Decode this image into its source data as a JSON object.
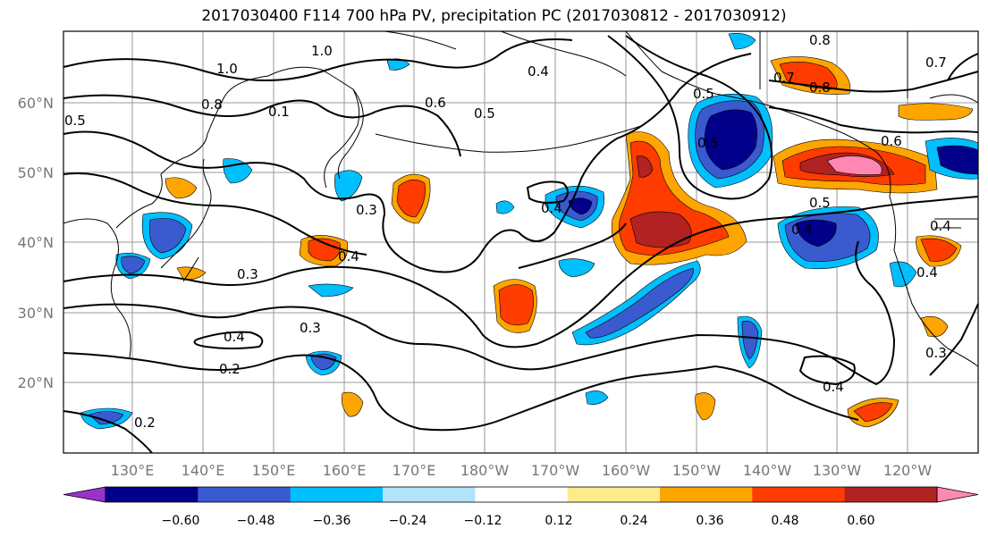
{
  "title": "2017030400 F114 700 hPa PV, precipitation PC (2017030812 - 2017030912)",
  "map": {
    "lat_labels": [
      "60°N",
      "50°N",
      "40°N",
      "30°N",
      "20°N"
    ],
    "lon_labels": [
      "130°E",
      "140°E",
      "150°E",
      "160°E",
      "170°E",
      "180°W",
      "170°W",
      "160°W",
      "150°W",
      "140°W",
      "130°W",
      "120°W"
    ],
    "contour_labels": [
      "1.0",
      "1.0",
      "0.8",
      "0.7",
      "0.6",
      "0.5",
      "0.4",
      "0.5",
      "0.8",
      "0.5",
      "0.3",
      "0.4",
      "0.3",
      "0.4",
      "0.4",
      "0.3",
      "0.2",
      "0.2",
      "0.6",
      "0.5",
      "0.4",
      "0.7",
      "0.8",
      "0.5",
      "0.4",
      "0.4",
      "0.3",
      "0.4",
      "0.1"
    ]
  },
  "colorbar": {
    "colors": [
      "#9933cc",
      "#00008b",
      "#3a5bcf",
      "#00bfff",
      "#b3e2fb",
      "#ffffff",
      "#ffeb8a",
      "#ffa500",
      "#ff3c00",
      "#b22222",
      "#ff88b3"
    ],
    "tick_labels": [
      "−0.60",
      "−0.48",
      "−0.36",
      "−0.24",
      "−0.12",
      "0.12",
      "0.24",
      "0.36",
      "0.48",
      "0.60"
    ],
    "levels": [
      -0.6,
      -0.48,
      -0.36,
      -0.24,
      -0.12,
      0.12,
      0.24,
      0.36,
      0.48,
      0.6
    ]
  },
  "colors": {
    "positive_1": "#ffa500",
    "positive_2": "#ff3c00",
    "positive_3": "#b22222",
    "positive_4": "#ff88b3",
    "negative_1": "#00bfff",
    "negative_2": "#3a5bcf",
    "negative_3": "#00008b"
  }
}
